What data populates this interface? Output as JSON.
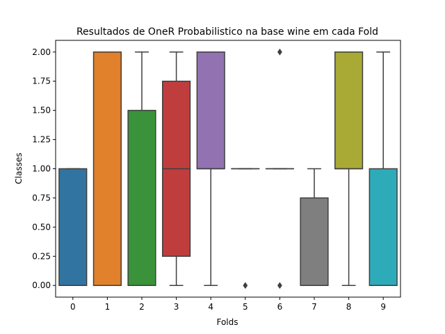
{
  "chart_data": {
    "type": "box",
    "title": "Resultados de OneR Probabilistico na base wine em cada Fold",
    "xlabel": "Folds",
    "ylabel": "Classes",
    "ylim": [
      -0.1,
      2.1
    ],
    "yticks": [
      0.0,
      0.25,
      0.5,
      0.75,
      1.0,
      1.25,
      1.5,
      1.75,
      2.0
    ],
    "ytick_labels": [
      "0.00",
      "0.25",
      "0.50",
      "0.75",
      "1.00",
      "1.25",
      "1.50",
      "1.75",
      "2.00"
    ],
    "categories": [
      "0",
      "1",
      "2",
      "3",
      "4",
      "5",
      "6",
      "7",
      "8",
      "9"
    ],
    "grid": false,
    "boxes": [
      {
        "fold": "0",
        "whislo": 0,
        "q1": 0,
        "med": 0,
        "q3": 1,
        "whishi": 1,
        "fliers": [],
        "color": "#3274a1"
      },
      {
        "fold": "1",
        "whislo": 0,
        "q1": 0,
        "med": 0,
        "q3": 2,
        "whishi": 2,
        "fliers": [],
        "color": "#e1812c"
      },
      {
        "fold": "2",
        "whislo": 0,
        "q1": 0,
        "med": 0,
        "q3": 1.5,
        "whishi": 2,
        "fliers": [],
        "color": "#3a923a"
      },
      {
        "fold": "3",
        "whislo": 0,
        "q1": 0.25,
        "med": 1,
        "q3": 1.75,
        "whishi": 2,
        "fliers": [],
        "color": "#c03d3e"
      },
      {
        "fold": "4",
        "whislo": 0,
        "q1": 1,
        "med": 1,
        "q3": 2,
        "whishi": 2,
        "fliers": [],
        "color": "#9372b2"
      },
      {
        "fold": "5",
        "whislo": 1,
        "q1": 1,
        "med": 1,
        "q3": 1,
        "whishi": 1,
        "fliers": [
          0
        ],
        "color": "#845b53"
      },
      {
        "fold": "6",
        "whislo": 1,
        "q1": 1,
        "med": 1,
        "q3": 1,
        "whishi": 1,
        "fliers": [
          0,
          2
        ],
        "color": "#d684bd"
      },
      {
        "fold": "7",
        "whislo": 0,
        "q1": 0,
        "med": 0,
        "q3": 0.75,
        "whishi": 1,
        "fliers": [],
        "color": "#7f7f7f"
      },
      {
        "fold": "8",
        "whislo": 0,
        "q1": 1,
        "med": 1,
        "q3": 2,
        "whishi": 2,
        "fliers": [],
        "color": "#a9aa35"
      },
      {
        "fold": "9",
        "whislo": 0,
        "q1": 0,
        "med": 0,
        "q3": 1,
        "whishi": 2,
        "fliers": [],
        "color": "#2eabb8"
      }
    ],
    "line_color": "#3f3f3f"
  }
}
